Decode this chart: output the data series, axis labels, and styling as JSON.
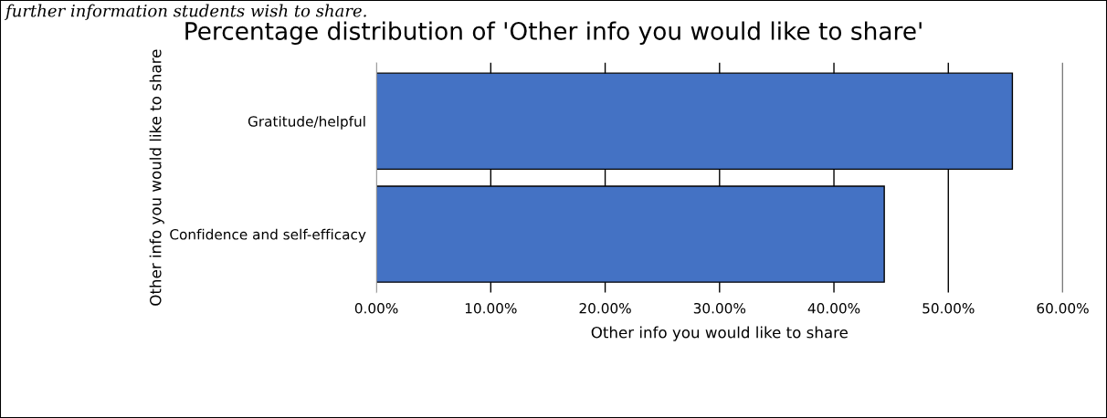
{
  "chart_data": {
    "type": "bar",
    "orientation": "horizontal",
    "title": "Percentage distribution of 'Other info you would like to share'",
    "xlabel": "Other info you would like to share",
    "ylabel": "Other info you would like to share",
    "categories": [
      "Gratitude/helpful",
      "Confidence and self-efficacy"
    ],
    "values": [
      55.6,
      44.4
    ],
    "color": "#4472c4",
    "xlim": [
      0,
      60
    ],
    "xticks": [
      {
        "value": 0,
        "label": "0.00%"
      },
      {
        "value": 10,
        "label": "10.00%"
      },
      {
        "value": 20,
        "label": "20.00%"
      },
      {
        "value": 30,
        "label": "30.00%"
      },
      {
        "value": 40,
        "label": "40.00%"
      },
      {
        "value": 50,
        "label": "50.00%"
      },
      {
        "value": 60,
        "label": "60.00%"
      }
    ],
    "grid": "x",
    "annotations": [
      "further information students wish to share."
    ]
  }
}
